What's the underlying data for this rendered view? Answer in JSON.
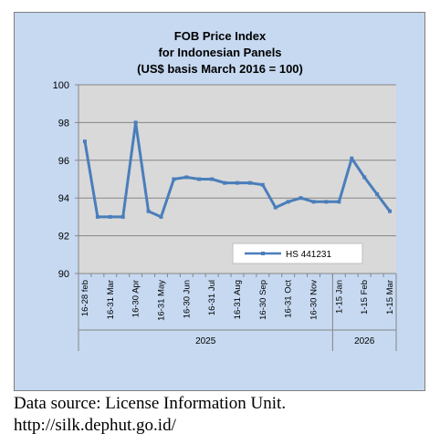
{
  "chart_data": {
    "type": "line",
    "title": [
      "FOB Price Index",
      "for Indonesian Panels",
      "(US$ basis March 2016 = 100)"
    ],
    "categories": [
      "16-28 feb",
      "",
      "16-31 Mar",
      "",
      "16-30 Apr",
      "",
      "16-31 May",
      "",
      "16-30 Jun",
      "",
      "16-31 Jul",
      "",
      "16-31 Aug",
      "",
      "16-30 Sep",
      "",
      "16-31 Oct",
      "",
      "16-30 Nov",
      "",
      "1-15 Jan",
      "",
      "1-15 Feb",
      "",
      "1-15 Mar"
    ],
    "series": [
      {
        "name": "HS 441231",
        "values": [
          97.0,
          93.0,
          93.0,
          93.0,
          98.0,
          93.3,
          93.0,
          95.0,
          95.1,
          95.0,
          95.0,
          94.8,
          94.8,
          94.8,
          94.7,
          93.5,
          93.8,
          94.0,
          93.8,
          93.8,
          93.8,
          96.1,
          95.1,
          94.2,
          93.3
        ]
      }
    ],
    "ylim": [
      90,
      100
    ],
    "yticks": [
      90,
      92,
      94,
      96,
      98,
      100
    ],
    "grid": true,
    "legend_position": "lower-right",
    "x_groups": [
      {
        "label": "2025",
        "start": 0,
        "end": 19
      },
      {
        "label": "2026",
        "start": 20,
        "end": 24
      }
    ],
    "colors": {
      "line": "#4a7ebb",
      "plot_bg": "#d9d9d9",
      "chart_bg": "#c6d9f1",
      "grid": "#868686"
    }
  },
  "source": {
    "line1": "Data source: License Information Unit.",
    "line2": "http://silk.dephut.go.id/"
  }
}
